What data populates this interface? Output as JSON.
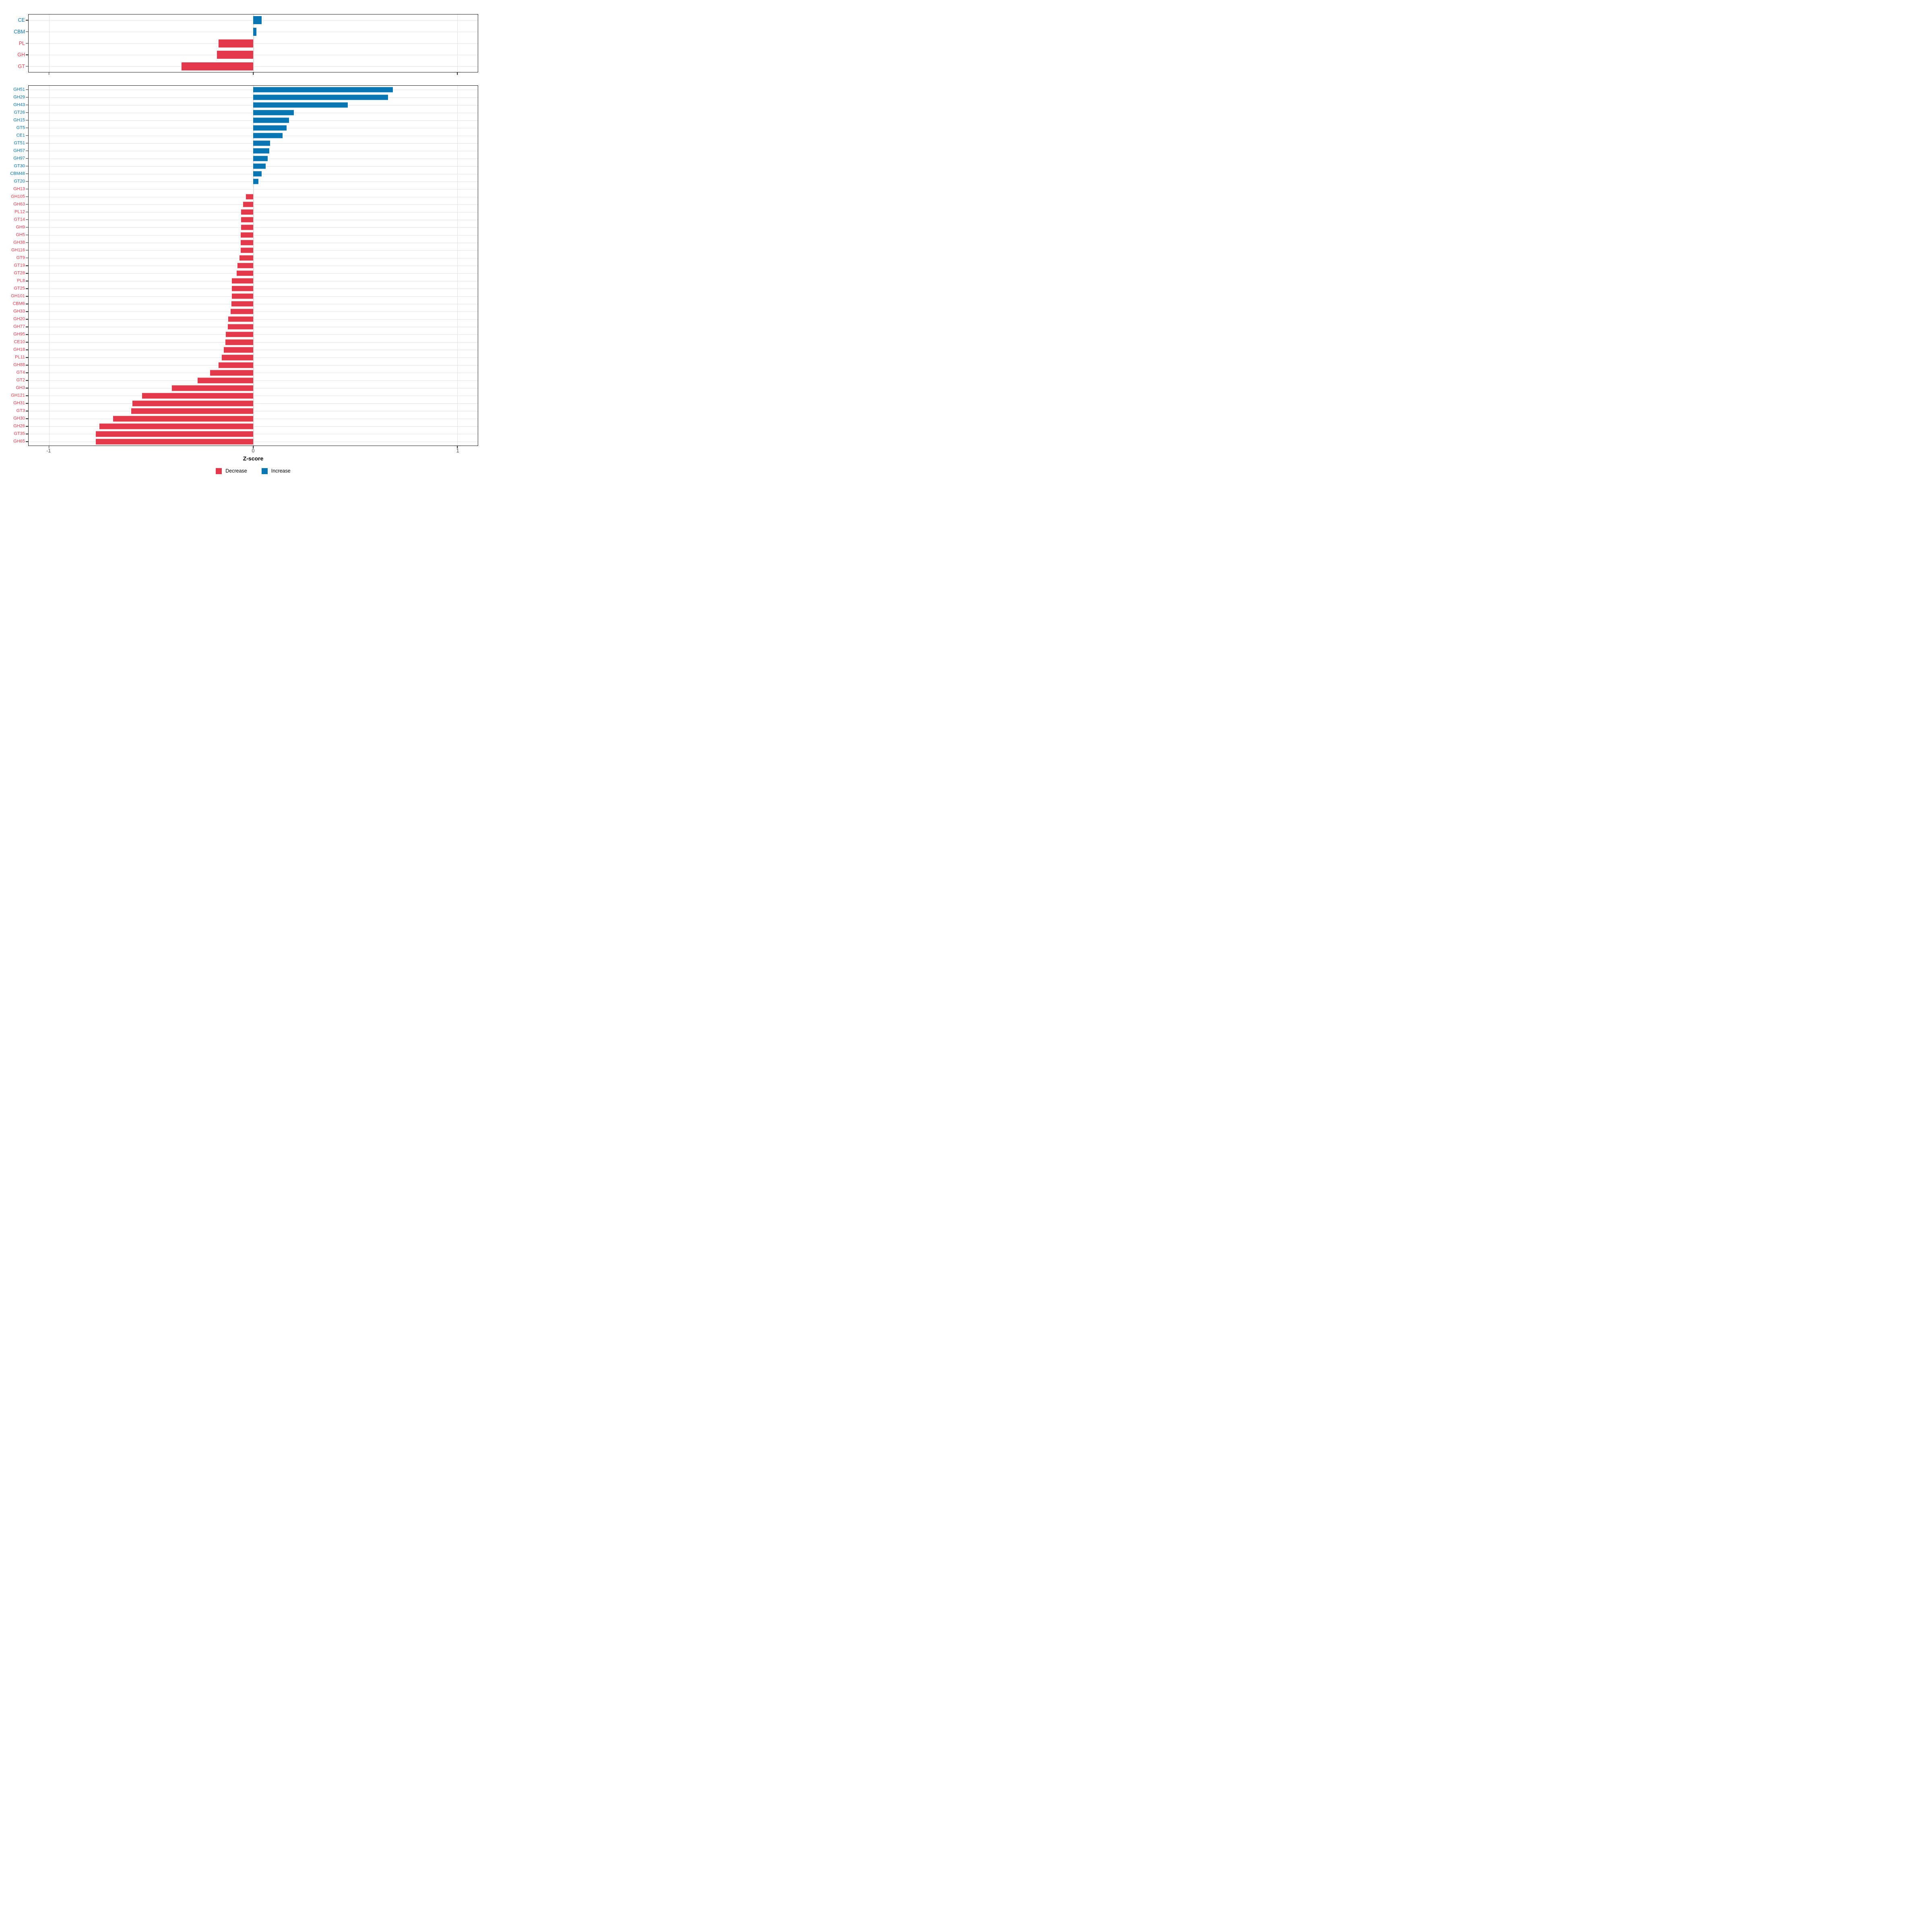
{
  "axis": {
    "xlabel": "Z-score",
    "xlim": [
      -1.1,
      1.1
    ],
    "ticks": [
      -1,
      0,
      1
    ],
    "tick_labels": [
      "-1",
      "0",
      "1"
    ]
  },
  "colors": {
    "decrease": "#e3394b",
    "increase": "#0876b2",
    "gridline": "#e3e3e3",
    "panel_border": "#1a1a1a",
    "axis_text": "#4d4d4d"
  },
  "legend": {
    "items": [
      {
        "label": "Decrease",
        "color": "#e3394b"
      },
      {
        "label": "Increase",
        "color": "#0876b2"
      }
    ]
  },
  "chart_data": [
    {
      "type": "bar",
      "orientation": "horizontal",
      "panel": "enzyme-class",
      "title": "",
      "xlabel": "Z-score",
      "xlim": [
        -1.1,
        1.1
      ],
      "xticks": [
        -1,
        0,
        1
      ],
      "grid": true,
      "legend_position": "bottom",
      "color_rule": "negative=Decrease(red), positive=Increase(blue)",
      "categories": [
        "CE",
        "CBM",
        "PL",
        "GH",
        "GT"
      ],
      "values": [
        0.042,
        0.016,
        -0.169,
        -0.177,
        -0.35
      ]
    },
    {
      "type": "bar",
      "orientation": "horizontal",
      "panel": "cazyme-family",
      "title": "",
      "xlabel": "Z-score",
      "xlim": [
        -1.1,
        1.1
      ],
      "xticks": [
        -1,
        0,
        1
      ],
      "grid": true,
      "legend_position": "bottom",
      "color_rule": "negative=Decrease(red), positive=Increase(blue)",
      "categories": [
        "GH51",
        "GH29",
        "GH43",
        "GT26",
        "GH15",
        "GT5",
        "CE1",
        "GT51",
        "GH57",
        "GH97",
        "GT30",
        "CBM48",
        "GT20",
        "GH13",
        "GH105",
        "GH63",
        "PL12",
        "GT14",
        "GH9",
        "GH5",
        "GH38",
        "GH116",
        "GT9",
        "GT19",
        "GT28",
        "PL8",
        "GT25",
        "GH101",
        "CBM6",
        "GH33",
        "GH20",
        "GH77",
        "GH95",
        "CE10",
        "GH18",
        "PL11",
        "GH88",
        "GT4",
        "GT2",
        "GH3",
        "GH121",
        "GH31",
        "GT3",
        "GH30",
        "GH26",
        "GT35",
        "GH65"
      ],
      "values": [
        0.685,
        0.661,
        0.464,
        0.2,
        0.176,
        0.163,
        0.143,
        0.083,
        0.078,
        0.071,
        0.062,
        0.042,
        0.025,
        -0.001,
        -0.036,
        -0.049,
        -0.059,
        -0.06,
        -0.06,
        -0.061,
        -0.061,
        -0.062,
        -0.068,
        -0.076,
        -0.081,
        -0.104,
        -0.105,
        -0.105,
        -0.106,
        -0.111,
        -0.123,
        -0.124,
        -0.134,
        -0.136,
        -0.143,
        -0.153,
        -0.169,
        -0.21,
        -0.272,
        -0.399,
        -0.544,
        -0.591,
        -0.598,
        -0.686,
        -0.754,
        -0.771,
        -0.771
      ]
    }
  ]
}
